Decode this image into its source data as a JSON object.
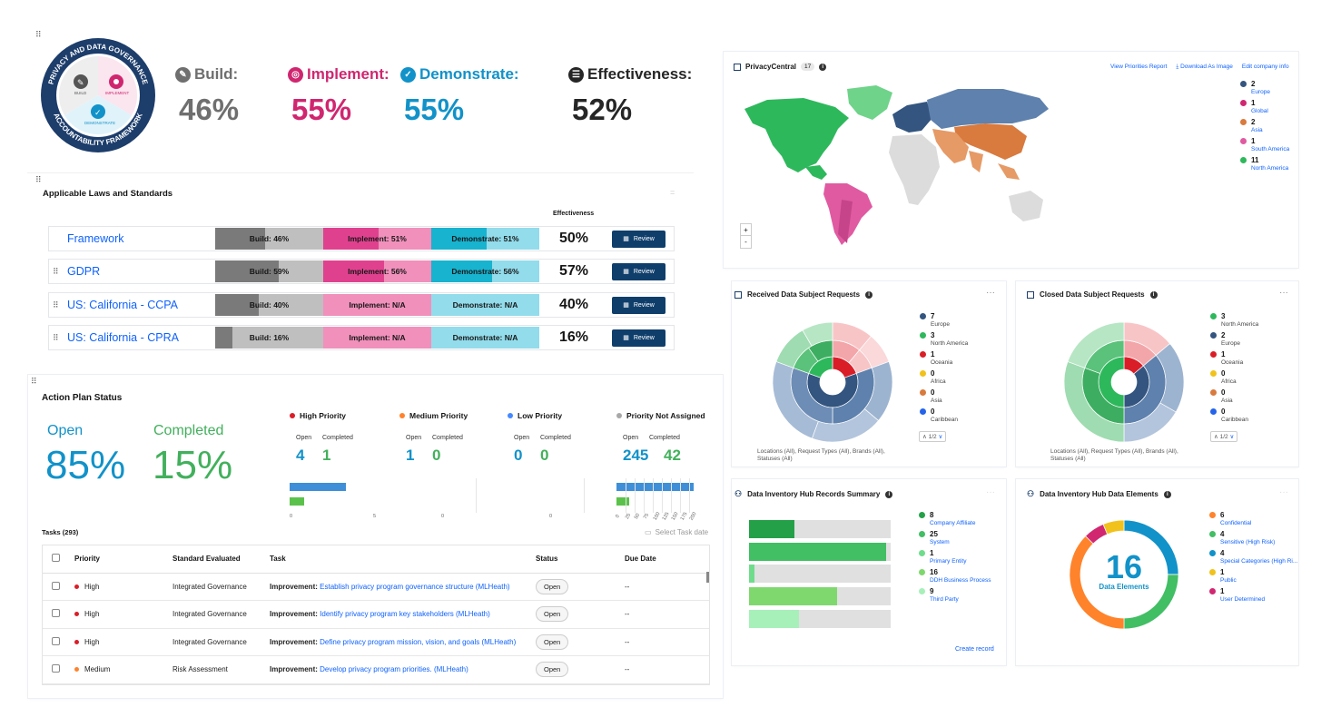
{
  "summary": {
    "badge_top": "PRIVACY AND DATA GOVERNANCE",
    "badge_bottom": "ACCOUNTABILITY FRAMEWORK",
    "badge_build": "BUILD",
    "badge_implement": "IMPLEMENT",
    "badge_demonstrate": "DEMONSTRATE",
    "metrics": [
      {
        "label": "Build:",
        "value": "46%",
        "color": "#6f6f6f",
        "icon": "wrench-icon"
      },
      {
        "label": "Implement:",
        "value": "55%",
        "color": "#d02670",
        "icon": "target-icon"
      },
      {
        "label": "Demonstrate:",
        "value": "55%",
        "color": "#1192c9",
        "icon": "check-circle-icon"
      },
      {
        "label": "Effectiveness:",
        "value": "52%",
        "color": "#262626",
        "icon": "globe-icon"
      }
    ]
  },
  "laws": {
    "title": "Applicable Laws and Standards",
    "effectiveness_header": "Effectiveness",
    "review_label": "Review",
    "rows": [
      {
        "name": "Framework",
        "build": "Build: 46%",
        "build_pct": 46,
        "implement": "Implement: 51%",
        "implement_pct": 51,
        "demonstrate": "Demonstrate: 51%",
        "demonstrate_pct": 51,
        "effectiveness": "50%"
      },
      {
        "name": "GDPR",
        "build": "Build: 59%",
        "build_pct": 59,
        "implement": "Implement: 56%",
        "implement_pct": 56,
        "demonstrate": "Demonstrate: 56%",
        "demonstrate_pct": 56,
        "effectiveness": "57%"
      },
      {
        "name": "US: California - CCPA",
        "build": "Build: 40%",
        "build_pct": 40,
        "implement": "Implement: N/A",
        "implement_pct": 0,
        "demonstrate": "Demonstrate: N/A",
        "demonstrate_pct": 0,
        "effectiveness": "40%"
      },
      {
        "name": "US: California - CPRA",
        "build": "Build: 16%",
        "build_pct": 16,
        "implement": "Implement: N/A",
        "implement_pct": 0,
        "demonstrate": "Demonstrate: N/A",
        "demonstrate_pct": 0,
        "effectiveness": "16%"
      }
    ]
  },
  "action_plan": {
    "title": "Action Plan Status",
    "open_label": "Open",
    "open_value": "85%",
    "completed_label": "Completed",
    "completed_value": "15%",
    "priorities": [
      {
        "name": "High Priority",
        "color": "#da1e28",
        "open": "4",
        "completed": "1",
        "axis": [
          "0",
          "5"
        ],
        "open_frac": 0.8,
        "completed_frac": 0.2
      },
      {
        "name": "Medium Priority",
        "color": "#ff832b",
        "open": "1",
        "completed": "0",
        "axis": [
          "0"
        ],
        "open_frac": 0,
        "completed_frac": 0
      },
      {
        "name": "Low Priority",
        "color": "#4589ff",
        "open": "0",
        "completed": "0",
        "axis": [
          "0"
        ],
        "open_frac": 0,
        "completed_frac": 0
      },
      {
        "name": "Priority Not Assigned",
        "color": "#a8a8a8",
        "open": "245",
        "completed": "42",
        "axis": [
          "0",
          "25",
          "50",
          "75",
          "100",
          "125",
          "150",
          "175",
          "200"
        ],
        "open_frac": 1,
        "completed_frac": 0.17
      }
    ],
    "open_col": "Open",
    "completed_col": "Completed",
    "tasks_label": "Tasks (293)",
    "date_placeholder": "Select Task date",
    "columns": [
      "Priority",
      "Standard Evaluated",
      "Task",
      "Status",
      "Due Date"
    ],
    "rows": [
      {
        "priority": "High",
        "pcolor": "#da1e28",
        "standard": "Integrated Governance",
        "prefix": "Improvement:",
        "task": "Establish privacy program governance structure (MLHeath)",
        "status": "Open",
        "due": "--"
      },
      {
        "priority": "High",
        "pcolor": "#da1e28",
        "standard": "Integrated Governance",
        "prefix": "Improvement:",
        "task": "Identify privacy program key stakeholders (MLHeath)",
        "status": "Open",
        "due": "--"
      },
      {
        "priority": "High",
        "pcolor": "#da1e28",
        "standard": "Integrated Governance",
        "prefix": "Improvement:",
        "task": "Define privacy program mission, vision, and goals (MLHeath)",
        "status": "Open",
        "due": "--"
      },
      {
        "priority": "Medium",
        "pcolor": "#ff832b",
        "standard": "Risk Assessment",
        "prefix": "Improvement:",
        "task": "Develop privacy program priorities. (MLHeath)",
        "status": "Open",
        "due": "--"
      }
    ]
  },
  "map": {
    "title": "PrivacyCentral",
    "count": "17",
    "actions": [
      "View Priorities Report",
      "Download As Image",
      "Edit company info"
    ],
    "zoom_in": "+",
    "zoom_out": "-",
    "legend": [
      {
        "n": "2",
        "label": "Europe",
        "color": "#33557f"
      },
      {
        "n": "1",
        "label": "Global",
        "color": "#d12771"
      },
      {
        "n": "2",
        "label": "Asia",
        "color": "#d97a3e"
      },
      {
        "n": "1",
        "label": "South America",
        "color": "#e05aa1"
      },
      {
        "n": "11",
        "label": "North America",
        "color": "#2eb85c"
      }
    ]
  },
  "received": {
    "title": "Received Data Subject Requests",
    "filters": "Locations (All), Request Types (All), Brands (All), Statuses (All)",
    "pager": "1/2",
    "legend": [
      {
        "n": "7",
        "label": "Europe",
        "color": "#33557f"
      },
      {
        "n": "3",
        "label": "North America",
        "color": "#2eb85c"
      },
      {
        "n": "1",
        "label": "Oceania",
        "color": "#da1e28"
      },
      {
        "n": "0",
        "label": "Africa",
        "color": "#f1c21b"
      },
      {
        "n": "0",
        "label": "Asia",
        "color": "#d97a3e"
      },
      {
        "n": "0",
        "label": "Caribbean",
        "color": "#2563eb"
      }
    ],
    "sunburst_labels": [
      "Access",
      "Unkno...",
      "Rectif...",
      "Quali...",
      "Request t...",
      "Access ...",
      "Unkno...",
      "Access...",
      "Correct...",
      "Access..."
    ]
  },
  "closed": {
    "title": "Closed Data Subject Requests",
    "filters": "Locations (All), Request Types (All), Brands (All), Statuses (All)",
    "pager": "1/2",
    "legend": [
      {
        "n": "3",
        "label": "North America",
        "color": "#2eb85c"
      },
      {
        "n": "2",
        "label": "Europe",
        "color": "#33557f"
      },
      {
        "n": "1",
        "label": "Oceania",
        "color": "#da1e28"
      },
      {
        "n": "0",
        "label": "Africa",
        "color": "#f1c21b"
      },
      {
        "n": "0",
        "label": "Asia",
        "color": "#d97a3e"
      },
      {
        "n": "0",
        "label": "Caribbean",
        "color": "#2563eb"
      }
    ],
    "sunburst_labels": [
      "Access",
      "Unkno...",
      "Rectif...",
      "Access...",
      "Unkno...",
      "Support",
      "Correct...",
      "Unkno..."
    ]
  },
  "records": {
    "title": "Data Inventory Hub Records Summary",
    "create_label": "Create record",
    "legend": [
      {
        "n": "8",
        "label": "Company Affiliate",
        "color": "#24a148",
        "frac": 0.32
      },
      {
        "n": "25",
        "label": "System",
        "color": "#42be65",
        "frac": 0.97
      },
      {
        "n": "1",
        "label": "Primary Entity",
        "color": "#6fdc8c",
        "frac": 0.04
      },
      {
        "n": "16",
        "label": "DDH Business Process",
        "color": "#7fd86e",
        "frac": 0.62
      },
      {
        "n": "9",
        "label": "Third Party",
        "color": "#a7f0ba",
        "frac": 0.35
      }
    ]
  },
  "elements": {
    "title": "Data Inventory Hub Data Elements",
    "center_value": "16",
    "center_label": "Data Elements",
    "legend": [
      {
        "n": "6",
        "label": "Confidential",
        "color": "#ff832b"
      },
      {
        "n": "4",
        "label": "Sensitive (High Risk)",
        "color": "#42be65"
      },
      {
        "n": "4",
        "label": "Special Categories (High Ri...",
        "color": "#1192c9"
      },
      {
        "n": "1",
        "label": "Public",
        "color": "#f1c21b"
      },
      {
        "n": "1",
        "label": "User Determined",
        "color": "#d12771"
      }
    ]
  }
}
